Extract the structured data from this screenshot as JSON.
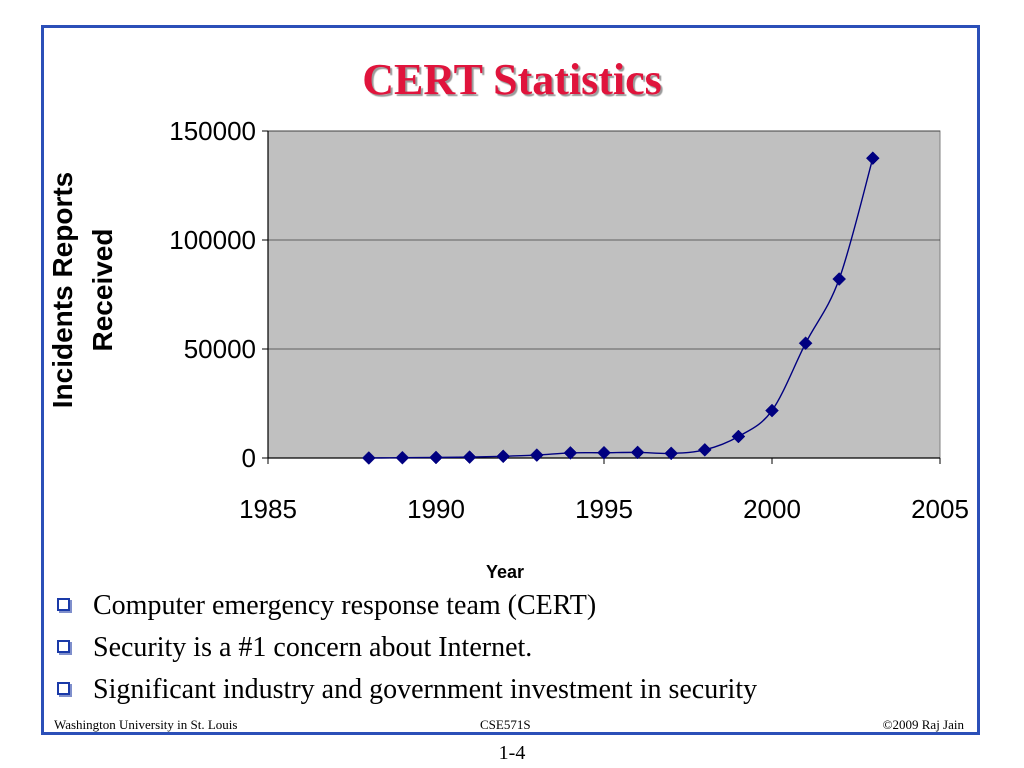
{
  "slide": {
    "title": "CERT Statistics",
    "bullets": [
      "Computer emergency response team (CERT)",
      "Security is a #1 concern about Internet.",
      "Significant industry and government investment in security"
    ],
    "footer": {
      "left": "Washington University in St. Louis",
      "center": "CSE571S",
      "right": "©2009 Raj Jain"
    },
    "page_number": "1-4"
  },
  "colors": {
    "title": "#e0143c",
    "frame": "#2b4fb8",
    "plot_bg": "#c0c0c0",
    "series": "#000080",
    "bullet": "#1a3aa8"
  },
  "chart_data": {
    "type": "scatter",
    "title": "",
    "xlabel": "Year",
    "ylabel": "Incidents Reports Received",
    "xlim": [
      1985,
      2005
    ],
    "ylim": [
      0,
      150000
    ],
    "xticks": [
      1985,
      1990,
      1995,
      2000,
      2005
    ],
    "yticks": [
      0,
      50000,
      100000,
      150000
    ],
    "grid": "horizontal",
    "legend": "none",
    "series": [
      {
        "marker": "diamond",
        "line": "smooth",
        "x": [
          1988,
          1989,
          1990,
          1991,
          1992,
          1993,
          1994,
          1995,
          1996,
          1997,
          1998,
          1999,
          2000,
          2001,
          2002,
          2003
        ],
        "y": [
          6,
          132,
          252,
          406,
          773,
          1334,
          2340,
          2412,
          2573,
          2134,
          3734,
          9859,
          21756,
          52658,
          82094,
          137529
        ]
      }
    ]
  }
}
